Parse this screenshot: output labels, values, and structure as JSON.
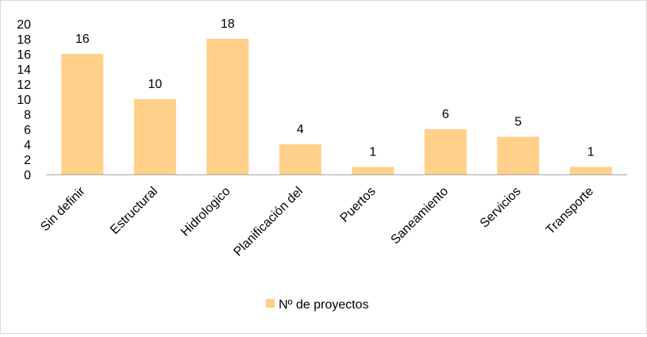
{
  "chart_data": {
    "type": "bar",
    "categories": [
      "Sin definir",
      "Estructural",
      "Hidrologico",
      "Planificación del",
      "Puertos",
      "Saneamiento",
      "Servicios",
      "Transporte"
    ],
    "series": [
      {
        "name": "Nº de proyectos",
        "values": [
          16,
          10,
          18,
          4,
          1,
          6,
          5,
          1
        ]
      }
    ],
    "data_labels": [
      "16",
      "10",
      "18",
      "4",
      "1",
      "6",
      "5",
      "1"
    ],
    "yticks": [
      "0",
      "2",
      "4",
      "6",
      "8",
      "10",
      "12",
      "14",
      "16",
      "18",
      "20"
    ],
    "ylim": [
      0,
      20
    ],
    "grid": false,
    "legend_position": "bottom",
    "colors": {
      "bar": "#FFD08A",
      "axis": "#A6A6A6",
      "text": "#000000"
    }
  }
}
